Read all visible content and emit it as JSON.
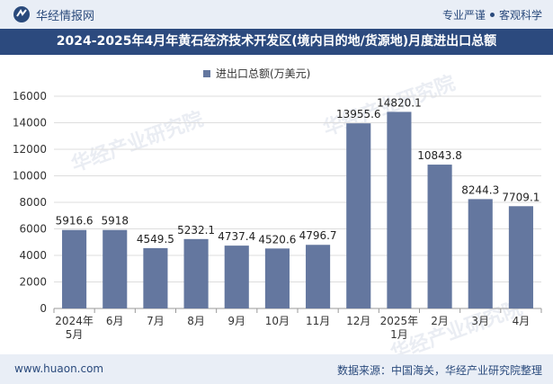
{
  "header": {
    "logo_text": "华经情报网",
    "tagline_left": "专业严谨",
    "tagline_right": "客观科学"
  },
  "title": "2024-2025年4月年黄石经济技术开发区(境内目的地/货源地)月度进出口总额",
  "watermark": "华经产业研究院",
  "footer": {
    "website": "www.huaon.com",
    "source": "数据来源：中国海关，华经产业研究院整理"
  },
  "colors": {
    "bar": "#64779f",
    "title_bg": "#2c4a7e",
    "header_bg": "#e9eef6",
    "grid": "#dddddd"
  },
  "chart_data": {
    "type": "bar",
    "categories": [
      "2024年\n5月",
      "6月",
      "7月",
      "8月",
      "9月",
      "10月",
      "11月",
      "12月",
      "2025年\n1月",
      "2月",
      "3月",
      "4月"
    ],
    "series": [
      {
        "name": "进出口总额(万美元)",
        "values": [
          5916.6,
          5918,
          4549.5,
          5232.1,
          4737.4,
          4520.6,
          4796.7,
          13955.6,
          14820.1,
          10843.8,
          8244.3,
          7709.1
        ]
      }
    ],
    "value_labels": [
      "5916.6",
      "5918",
      "4549.5",
      "5232.1",
      "4737.4",
      "4520.6",
      "4796.7",
      "13955.6",
      "14820.1",
      "10843.8",
      "8244.3",
      "7709.1"
    ],
    "y_ticks": [
      "0",
      "2000",
      "4000",
      "6000",
      "8000",
      "10000",
      "12000",
      "14000",
      "16000"
    ],
    "ylim": [
      0,
      16000
    ],
    "grid": true,
    "legend_position": "top-center"
  }
}
